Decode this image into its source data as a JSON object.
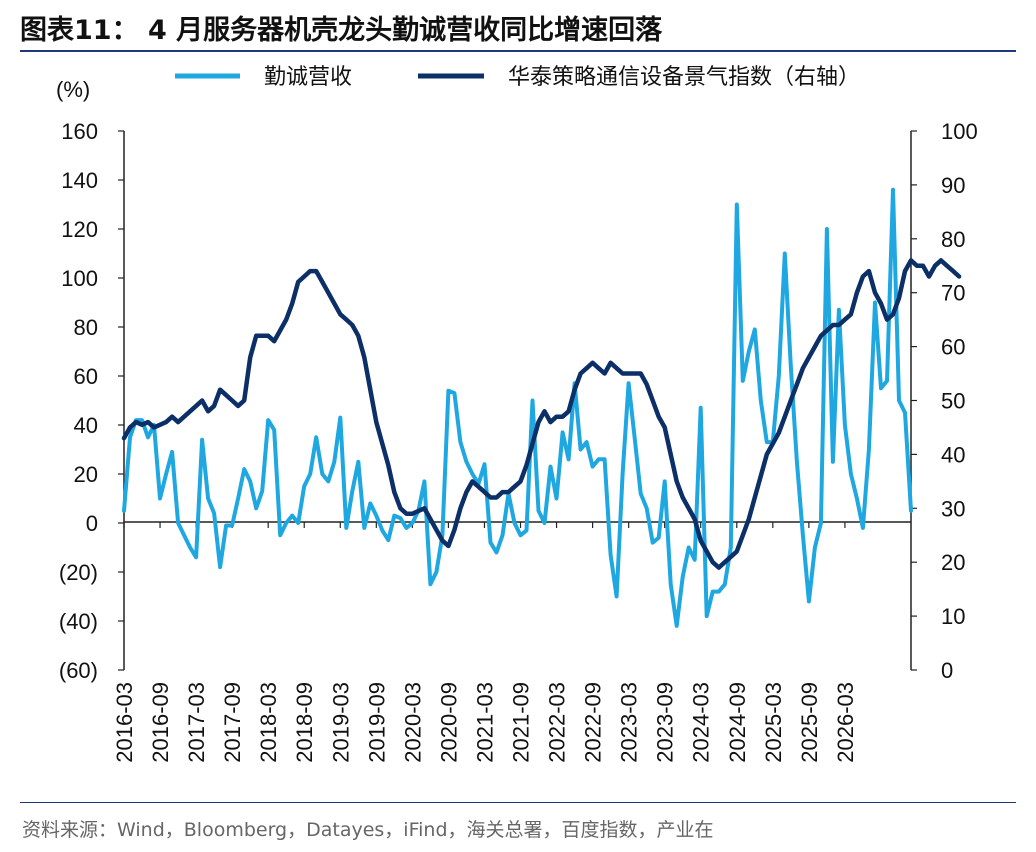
{
  "figure": {
    "title": "图表11：  4 月服务器机壳龙头勤诚营收同比增速回落",
    "source": "资料来源：Wind，Bloomberg，Datayes，iFind，海关总署，百度指数，产业在"
  },
  "chart_data": {
    "type": "line",
    "left_axis": {
      "unit_label": "(%)",
      "range": [
        -60,
        160
      ],
      "ticks": [
        "160",
        "140",
        "120",
        "100",
        "80",
        "60",
        "40",
        "20",
        "0",
        "(20)",
        "(40)",
        "(60)"
      ],
      "tick_values": [
        160,
        140,
        120,
        100,
        80,
        60,
        40,
        20,
        0,
        -20,
        -40,
        -60
      ]
    },
    "right_axis": {
      "range": [
        0,
        100
      ],
      "ticks": [
        "100",
        "90",
        "80",
        "70",
        "60",
        "50",
        "40",
        "30",
        "20",
        "10",
        "0"
      ],
      "tick_values": [
        100,
        90,
        80,
        70,
        60,
        50,
        40,
        30,
        20,
        10,
        0
      ]
    },
    "x_ticks": [
      "2016-03",
      "2016-09",
      "2017-03",
      "2017-09",
      "2018-03",
      "2018-09",
      "2019-03",
      "2019-09",
      "2020-03",
      "2020-09",
      "2021-03",
      "2021-09",
      "2022-03",
      "2022-09",
      "2023-03",
      "2023-09",
      "2024-03",
      "2024-09",
      "2025-03",
      "2025-09",
      "2026-03"
    ],
    "x_start": "2016-03",
    "grid": false,
    "legend_position": "top",
    "series": [
      {
        "name": "勤诚营收",
        "axis": "left",
        "color": "#1ea7e1",
        "values": [
          5,
          35,
          42,
          42,
          35,
          40,
          10,
          20,
          29,
          0,
          -5,
          -10,
          -14,
          34,
          10,
          4,
          -18,
          -1,
          -1,
          10,
          22,
          17,
          6,
          13,
          42,
          38,
          -5,
          0,
          3,
          0,
          15,
          20,
          35,
          20,
          17,
          25,
          43,
          -2,
          13,
          25,
          -2,
          8,
          3,
          -3,
          -7,
          3,
          2,
          -2,
          0,
          5,
          17,
          -25,
          -20,
          -5,
          54,
          53,
          33,
          25,
          20,
          16,
          24,
          -8,
          -12,
          -5,
          12,
          0,
          -5,
          -3,
          50,
          5,
          0,
          23,
          10,
          37,
          26,
          57,
          30,
          33,
          23,
          26,
          26,
          -13,
          -30,
          20,
          57,
          35,
          12,
          6,
          -8,
          -6,
          17,
          -25,
          -42,
          -22,
          -10,
          -15,
          47,
          -38,
          -28,
          -28,
          -25,
          -10,
          130,
          58,
          70,
          79,
          50,
          33,
          33,
          60,
          110,
          64,
          25,
          -5,
          -32,
          -10,
          0,
          120,
          25,
          87,
          40,
          20,
          10,
          -2,
          30,
          90,
          55,
          58,
          136,
          50,
          45,
          5
        ]
      },
      {
        "name": "华泰策略通信设备景气指数（右轴）",
        "axis": "right",
        "color": "#0b2f66",
        "values": [
          43,
          45,
          46,
          45.5,
          46,
          45,
          45.5,
          46,
          47,
          46,
          47,
          48,
          49,
          50,
          48,
          49,
          52,
          51,
          50,
          49,
          50,
          58,
          62,
          62,
          62,
          61,
          63,
          65,
          68,
          72,
          73,
          74,
          74,
          72,
          70,
          68,
          66,
          65,
          64,
          62,
          58,
          52,
          46,
          42,
          38,
          33,
          30,
          29,
          29,
          29.5,
          30,
          28,
          26,
          24,
          23,
          26,
          30,
          33,
          35,
          34,
          33,
          32,
          32,
          33,
          33,
          34,
          35,
          38,
          42,
          46,
          48,
          46,
          47,
          47,
          48,
          52,
          55,
          56,
          57,
          56,
          55,
          57,
          56,
          55,
          55,
          55,
          55,
          53,
          50,
          47,
          45,
          40,
          35,
          32,
          30,
          28,
          24,
          22,
          20,
          19,
          20,
          21,
          22,
          25,
          28,
          32,
          36,
          40,
          42,
          44,
          47,
          50,
          53,
          56,
          58,
          60,
          62,
          63,
          64,
          64,
          65,
          66,
          70,
          73,
          74,
          70,
          68,
          65,
          66,
          69,
          74,
          76,
          75,
          75,
          73,
          75,
          76,
          75,
          74,
          73
        ]
      }
    ]
  }
}
